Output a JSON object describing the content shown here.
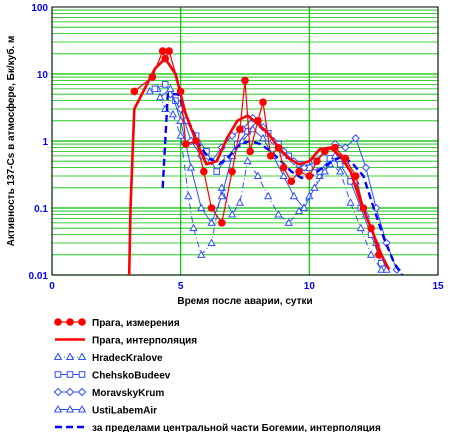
{
  "chart_data": {
    "type": "line",
    "xlabel": "Время после аварии, сутки",
    "ylabel": "Активность 137-Cs в атмосфере, Бк/куб. м",
    "xlim": [
      0,
      15
    ],
    "ylim": [
      0.01,
      100
    ],
    "y_scale": "log",
    "x_ticks": [
      "0",
      "5",
      "10",
      "15"
    ],
    "y_ticks": [
      "0.01",
      "0.1",
      "1",
      "10",
      "100"
    ],
    "grid": true,
    "plot_background": "#ffffff",
    "grid_color": "#00c000",
    "legend_position": "bottom",
    "series": [
      {
        "name": "Прага, измерения",
        "color": "#ff0000",
        "style": "solid-dots",
        "points": [
          [
            3.2,
            5.5
          ],
          [
            3.9,
            9
          ],
          [
            4.3,
            22
          ],
          [
            4.4,
            17
          ],
          [
            4.55,
            22
          ],
          [
            5.0,
            5.5
          ],
          [
            5.2,
            0.9
          ],
          [
            5.6,
            1.0
          ],
          [
            5.9,
            0.35
          ],
          [
            6.2,
            0.1
          ],
          [
            6.6,
            0.06
          ],
          [
            7.0,
            0.35
          ],
          [
            7.3,
            1.5
          ],
          [
            7.5,
            8
          ],
          [
            7.7,
            0.7
          ],
          [
            8.0,
            2
          ],
          [
            8.2,
            3.8
          ],
          [
            8.5,
            0.6
          ],
          [
            8.8,
            0.8
          ],
          [
            9.0,
            0.4
          ],
          [
            9.3,
            0.25
          ],
          [
            9.6,
            0.35
          ],
          [
            10.0,
            0.3
          ],
          [
            10.3,
            0.5
          ],
          [
            10.6,
            0.7
          ],
          [
            11.0,
            0.8
          ],
          [
            11.4,
            0.55
          ],
          [
            11.8,
            0.3
          ],
          [
            12.1,
            0.1
          ],
          [
            12.4,
            0.05
          ],
          [
            12.7,
            0.02
          ]
        ]
      },
      {
        "name": "Прага, интерполяция",
        "color": "#ff0000",
        "style": "thick",
        "points": [
          [
            3.0,
            0.01
          ],
          [
            3.05,
            0.1
          ],
          [
            3.2,
            3
          ],
          [
            3.6,
            6
          ],
          [
            4.0,
            12
          ],
          [
            4.4,
            17
          ],
          [
            4.8,
            10
          ],
          [
            5.2,
            2.5
          ],
          [
            5.6,
            1.0
          ],
          [
            6.0,
            0.45
          ],
          [
            6.4,
            0.5
          ],
          [
            6.8,
            1.1
          ],
          [
            7.2,
            2.0
          ],
          [
            7.6,
            2.4
          ],
          [
            8.0,
            1.8
          ],
          [
            8.4,
            1.3
          ],
          [
            8.8,
            0.8
          ],
          [
            9.2,
            0.55
          ],
          [
            9.6,
            0.45
          ],
          [
            10.0,
            0.5
          ],
          [
            10.4,
            0.75
          ],
          [
            10.8,
            0.8
          ],
          [
            11.2,
            0.6
          ],
          [
            11.6,
            0.35
          ],
          [
            12.0,
            0.12
          ],
          [
            12.4,
            0.05
          ],
          [
            12.8,
            0.02
          ],
          [
            13.1,
            0.012
          ]
        ]
      },
      {
        "name": "HradecKralove",
        "color": "#3050ff",
        "style": "dashdot-triangle",
        "points": [
          [
            3.8,
            5.5
          ],
          [
            4.1,
            6
          ],
          [
            4.4,
            3
          ],
          [
            4.7,
            2.5
          ],
          [
            5.0,
            1.2
          ],
          [
            5.3,
            0.15
          ],
          [
            5.5,
            0.05
          ],
          [
            5.8,
            0.02
          ],
          [
            6.2,
            0.03
          ],
          [
            6.6,
            0.2
          ],
          [
            7.0,
            0.08
          ],
          [
            7.3,
            0.12
          ],
          [
            7.6,
            0.5
          ],
          [
            8.0,
            0.3
          ],
          [
            8.4,
            0.15
          ],
          [
            8.8,
            0.08
          ],
          [
            9.2,
            0.06
          ],
          [
            9.6,
            0.09
          ],
          [
            10.0,
            0.15
          ],
          [
            10.4,
            0.3
          ],
          [
            10.8,
            0.45
          ],
          [
            11.2,
            0.35
          ],
          [
            11.6,
            0.12
          ],
          [
            12.0,
            0.05
          ],
          [
            12.4,
            0.02
          ],
          [
            12.8,
            0.012
          ]
        ]
      },
      {
        "name": "ChehskoBudeev",
        "color": "#3050ff",
        "style": "square",
        "points": [
          [
            4.0,
            6
          ],
          [
            4.4,
            7
          ],
          [
            4.8,
            4
          ],
          [
            5.2,
            2
          ],
          [
            5.6,
            1.2
          ],
          [
            6.0,
            0.7
          ],
          [
            6.4,
            0.35
          ],
          [
            6.8,
            0.55
          ],
          [
            7.2,
            0.9
          ],
          [
            7.6,
            1.4
          ],
          [
            8.0,
            2.0
          ],
          [
            8.4,
            1.3
          ],
          [
            8.8,
            0.9
          ],
          [
            9.2,
            0.6
          ],
          [
            9.6,
            0.45
          ],
          [
            10.0,
            0.4
          ],
          [
            10.4,
            0.35
          ],
          [
            10.8,
            0.55
          ],
          [
            11.2,
            0.45
          ],
          [
            11.6,
            0.25
          ],
          [
            12.0,
            0.1
          ],
          [
            12.4,
            0.04
          ],
          [
            12.8,
            0.015
          ]
        ]
      },
      {
        "name": "MoravskyKrum",
        "color": "#3050ff",
        "style": "diamond",
        "points": [
          [
            4.6,
            5
          ],
          [
            5.0,
            3
          ],
          [
            5.4,
            1.0
          ],
          [
            5.8,
            0.6
          ],
          [
            6.2,
            0.5
          ],
          [
            6.6,
            0.8
          ],
          [
            7.0,
            1.2
          ],
          [
            7.4,
            1.5
          ],
          [
            7.8,
            2.2
          ],
          [
            8.2,
            1.6
          ],
          [
            8.6,
            1.0
          ],
          [
            9.0,
            0.7
          ],
          [
            9.4,
            0.5
          ],
          [
            9.8,
            0.4
          ],
          [
            10.2,
            0.5
          ],
          [
            10.6,
            0.7
          ],
          [
            11.0,
            0.9
          ],
          [
            11.4,
            0.8
          ],
          [
            11.8,
            1.1
          ],
          [
            12.2,
            0.4
          ],
          [
            12.6,
            0.1
          ],
          [
            13.0,
            0.03
          ],
          [
            13.4,
            0.012
          ]
        ]
      },
      {
        "name": "UstiLabemAir",
        "color": "#3050ff",
        "style": "triangle",
        "points": [
          [
            4.2,
            4.5
          ],
          [
            4.6,
            6
          ],
          [
            5.0,
            2
          ],
          [
            5.4,
            0.4
          ],
          [
            5.8,
            0.1
          ],
          [
            6.2,
            0.06
          ],
          [
            6.6,
            0.15
          ],
          [
            7.0,
            0.6
          ],
          [
            7.4,
            1.0
          ],
          [
            7.8,
            1.5
          ],
          [
            8.2,
            1.1
          ],
          [
            8.6,
            0.6
          ],
          [
            9.0,
            0.3
          ],
          [
            9.4,
            0.15
          ],
          [
            9.8,
            0.1
          ],
          [
            10.2,
            0.2
          ],
          [
            10.6,
            0.35
          ],
          [
            11.0,
            0.6
          ],
          [
            11.4,
            0.5
          ],
          [
            11.8,
            0.25
          ],
          [
            12.2,
            0.08
          ],
          [
            12.6,
            0.03
          ],
          [
            13.0,
            0.012
          ]
        ]
      },
      {
        "name": "за пределами центральной части Богемии, интерполяция",
        "color": "#0000ff",
        "style": "thick-dashed",
        "points": [
          [
            4.3,
            0.2
          ],
          [
            4.5,
            5
          ],
          [
            4.9,
            5
          ],
          [
            5.3,
            2.0
          ],
          [
            5.7,
            0.9
          ],
          [
            6.1,
            0.55
          ],
          [
            6.5,
            0.45
          ],
          [
            6.9,
            0.6
          ],
          [
            7.3,
            0.9
          ],
          [
            7.7,
            1.0
          ],
          [
            8.1,
            0.9
          ],
          [
            8.5,
            0.7
          ],
          [
            8.9,
            0.5
          ],
          [
            9.3,
            0.35
          ],
          [
            9.7,
            0.28
          ],
          [
            10.1,
            0.3
          ],
          [
            10.5,
            0.4
          ],
          [
            10.9,
            0.5
          ],
          [
            11.3,
            0.6
          ],
          [
            11.7,
            0.45
          ],
          [
            12.1,
            0.3
          ],
          [
            12.5,
            0.1
          ],
          [
            12.9,
            0.035
          ],
          [
            13.3,
            0.015
          ],
          [
            13.6,
            0.01
          ]
        ]
      }
    ]
  }
}
